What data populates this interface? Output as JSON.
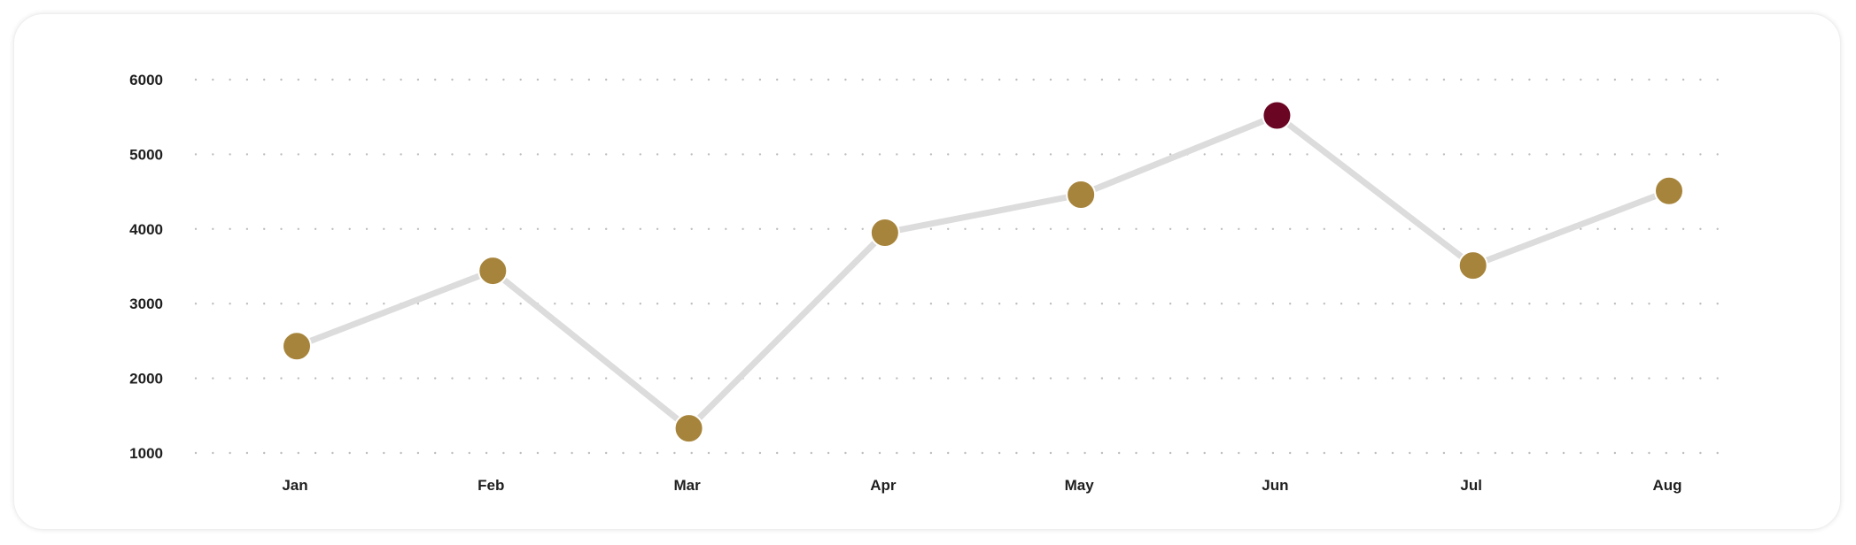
{
  "chart_data": {
    "type": "line",
    "categories": [
      "Jan",
      "Feb",
      "Mar",
      "Apr",
      "May",
      "Jun",
      "Jul",
      "Aug"
    ],
    "series": [
      {
        "values": [
          2430,
          3440,
          1330,
          3950,
          4460,
          5520,
          3510,
          4510
        ]
      }
    ],
    "highlight_index": 5,
    "yticks": [
      1000,
      2000,
      3000,
      4000,
      5000,
      6000
    ],
    "ylim": [
      1000,
      6000
    ],
    "grid": "horizontal-dotted",
    "legend": "none",
    "colors": {
      "line": "#dcdcdc",
      "point": "#a7843b",
      "highlight": "#6a0523",
      "grid": "#bdbdbd",
      "text": "#1f1f1f"
    }
  }
}
